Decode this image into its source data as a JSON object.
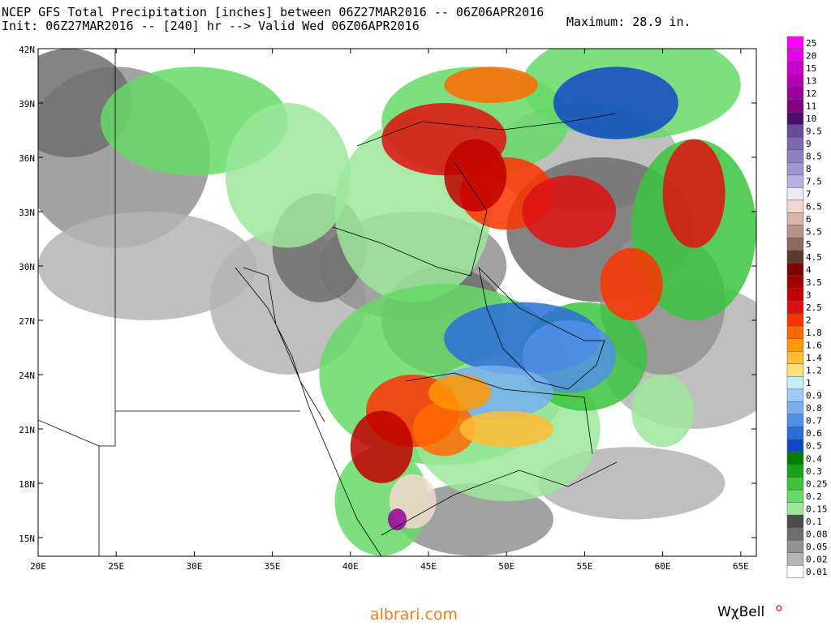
{
  "header": {
    "title": "NCEP GFS Total Precipitation [inches] between 06Z27MAR2016 -- 06Z06APR2016",
    "init": "Init: 06Z27MAR2016 -- [240] hr --> Valid Wed 06Z06APR2016",
    "maximum": "Maximum: 28.9 in."
  },
  "axes": {
    "lat": [
      "42N",
      "39N",
      "36N",
      "33N",
      "30N",
      "27N",
      "24N",
      "21N",
      "18N",
      "15N"
    ],
    "lon": [
      "20E",
      "25E",
      "30E",
      "35E",
      "40E",
      "45E",
      "50E",
      "55E",
      "60E",
      "65E"
    ]
  },
  "legend": {
    "items": [
      {
        "label": "25",
        "color": "#ff00ff"
      },
      {
        "label": "20",
        "color": "#e600e6"
      },
      {
        "label": "15",
        "color": "#cc00cc"
      },
      {
        "label": "13",
        "color": "#b300b3"
      },
      {
        "label": "12",
        "color": "#990099"
      },
      {
        "label": "11",
        "color": "#800080"
      },
      {
        "label": "10",
        "color": "#4b0f6e"
      },
      {
        "label": "9.5",
        "color": "#6a4a9e"
      },
      {
        "label": "9",
        "color": "#7b68ae"
      },
      {
        "label": "8.5",
        "color": "#8c7fc0"
      },
      {
        "label": "8",
        "color": "#9e96cf"
      },
      {
        "label": "7.5",
        "color": "#b9b2de"
      },
      {
        "label": "7",
        "color": "#eeeaf4"
      },
      {
        "label": "6.5",
        "color": "#f3d8cf"
      },
      {
        "label": "6",
        "color": "#d9b4a8"
      },
      {
        "label": "5.5",
        "color": "#b89288"
      },
      {
        "label": "5",
        "color": "#8c6b60"
      },
      {
        "label": "4.5",
        "color": "#5c3a30"
      },
      {
        "label": "4",
        "color": "#800000"
      },
      {
        "label": "3.5",
        "color": "#a00000"
      },
      {
        "label": "3",
        "color": "#c00000"
      },
      {
        "label": "2.5",
        "color": "#e01010"
      },
      {
        "label": "2",
        "color": "#ff3300"
      },
      {
        "label": "1.8",
        "color": "#ff6a00"
      },
      {
        "label": "1.6",
        "color": "#ff9900"
      },
      {
        "label": "1.4",
        "color": "#ffbb33"
      },
      {
        "label": "1.2",
        "color": "#ffdd77"
      },
      {
        "label": "1",
        "color": "#c6f0f8"
      },
      {
        "label": "0.9",
        "color": "#9ecbf5"
      },
      {
        "label": "0.8",
        "color": "#78aef0"
      },
      {
        "label": "0.7",
        "color": "#4f8fe6"
      },
      {
        "label": "0.6",
        "color": "#2a6fd9"
      },
      {
        "label": "0.5",
        "color": "#1048c8"
      },
      {
        "label": "0.4",
        "color": "#007f00"
      },
      {
        "label": "0.3",
        "color": "#17a517"
      },
      {
        "label": "0.25",
        "color": "#3cc43c"
      },
      {
        "label": "0.2",
        "color": "#66d966"
      },
      {
        "label": "0.15",
        "color": "#9be89b"
      },
      {
        "label": "0.1",
        "color": "#4d4d4d"
      },
      {
        "label": "0.08",
        "color": "#6e6e6e"
      },
      {
        "label": "0.05",
        "color": "#929292"
      },
      {
        "label": "0.02",
        "color": "#b4b4b4"
      },
      {
        "label": "0.01",
        "color": "#ffffff"
      }
    ]
  },
  "footer": {
    "site": "albrari.com",
    "brand": "WχBell"
  }
}
